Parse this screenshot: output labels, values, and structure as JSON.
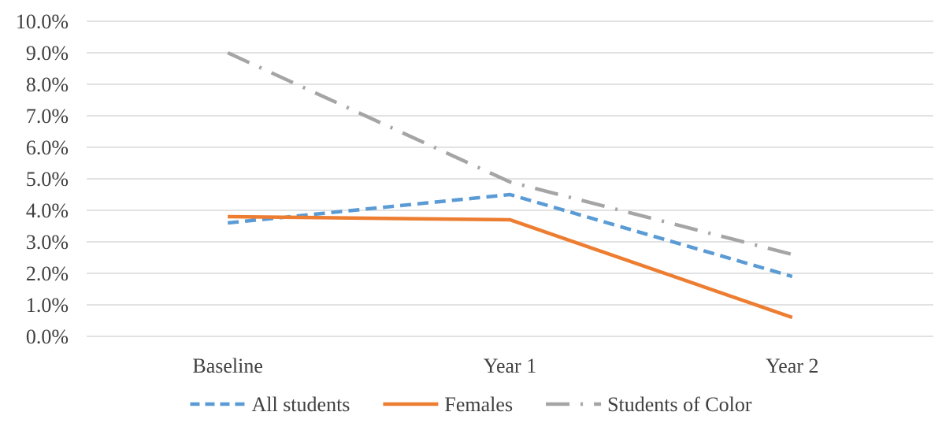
{
  "chart_data": {
    "type": "line",
    "categories": [
      "Baseline",
      "Year 1",
      "Year 2"
    ],
    "ylim": [
      0,
      10
    ],
    "y_ticks": [
      0,
      1,
      2,
      3,
      4,
      5,
      6,
      7,
      8,
      9,
      10
    ],
    "y_tick_labels": [
      "0.0%",
      "1.0%",
      "2.0%",
      "3.0%",
      "4.0%",
      "5.0%",
      "6.0%",
      "7.0%",
      "8.0%",
      "9.0%",
      "10.0%"
    ],
    "grid": true,
    "legend_position": "bottom",
    "series": [
      {
        "name": "All students",
        "values": [
          3.6,
          4.5,
          1.9
        ],
        "color": "#5b9bd5",
        "style": "dashed"
      },
      {
        "name": "Females",
        "values": [
          3.8,
          3.7,
          0.6
        ],
        "color": "#ed7d31",
        "style": "solid"
      },
      {
        "name": "Students of Color",
        "values": [
          9.0,
          4.9,
          2.6
        ],
        "color": "#a5a5a5",
        "style": "dash-dot"
      }
    ]
  }
}
